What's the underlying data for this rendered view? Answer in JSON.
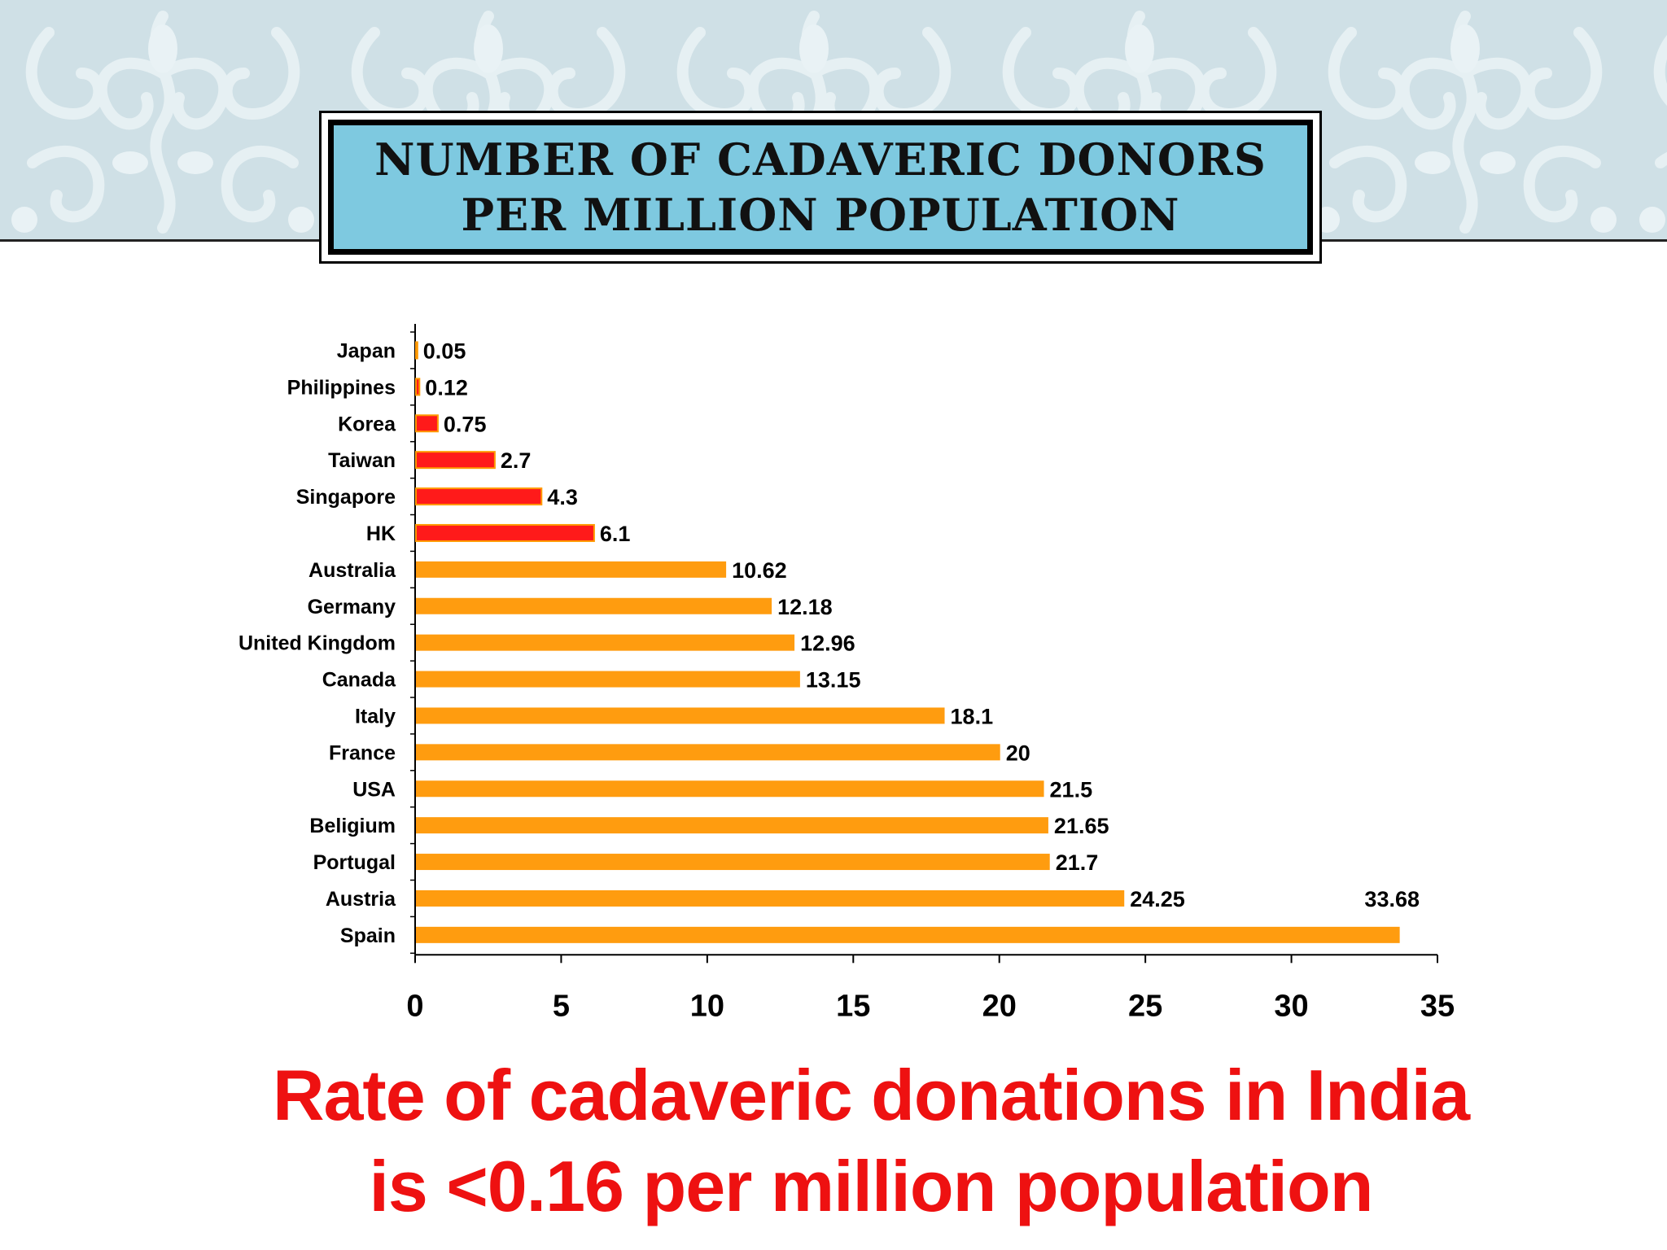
{
  "slide": {
    "title_lines": [
      "NUMBER OF CADAVERIC DONORS",
      "PER MILLION POPULATION"
    ],
    "footnote_lines": [
      "Rate of cadaveric donations in India",
      "is <0.16 per million population"
    ]
  },
  "colors": {
    "asia_bar": "#ff1a1a",
    "asia_bar_border": "#ff9900",
    "other_bar": "#ff9c0f",
    "title_box": "#7ec9e0",
    "footnote": "#ee1111"
  },
  "chart_data": {
    "type": "bar",
    "orientation": "horizontal",
    "categories": [
      "Japan",
      "Philippines",
      "Korea",
      "Taiwan",
      "Singapore",
      "HK",
      "Australia",
      "Germany",
      "United Kingdom",
      "Canada",
      "Italy",
      "France",
      "USA",
      "Beligium",
      "Portugal",
      "Austria",
      "Spain"
    ],
    "values": [
      0.05,
      0.12,
      0.75,
      2.7,
      4.3,
      6.1,
      10.62,
      12.18,
      12.96,
      13.15,
      18.1,
      20,
      21.5,
      21.65,
      21.7,
      24.25,
      33.68
    ],
    "value_labels": [
      "0.05",
      "0.12",
      "0.75",
      "2.7",
      "4.3",
      "6.1",
      "10.62",
      "12.18",
      "12.96",
      "13.15",
      "18.1",
      "20",
      "21.5",
      "21.65",
      "21.7",
      "24.25",
      "33.68"
    ],
    "highlighted_categories": [
      "Japan",
      "Philippines",
      "Korea",
      "Taiwan",
      "Singapore",
      "HK"
    ],
    "xlim": [
      0,
      35
    ],
    "x_ticks": [
      0,
      5,
      10,
      15,
      20,
      25,
      30,
      35
    ],
    "x_tick_labels": [
      "0",
      "5",
      "10",
      "15",
      "20",
      "25",
      "30",
      "35"
    ],
    "grid": false,
    "legend": false
  }
}
